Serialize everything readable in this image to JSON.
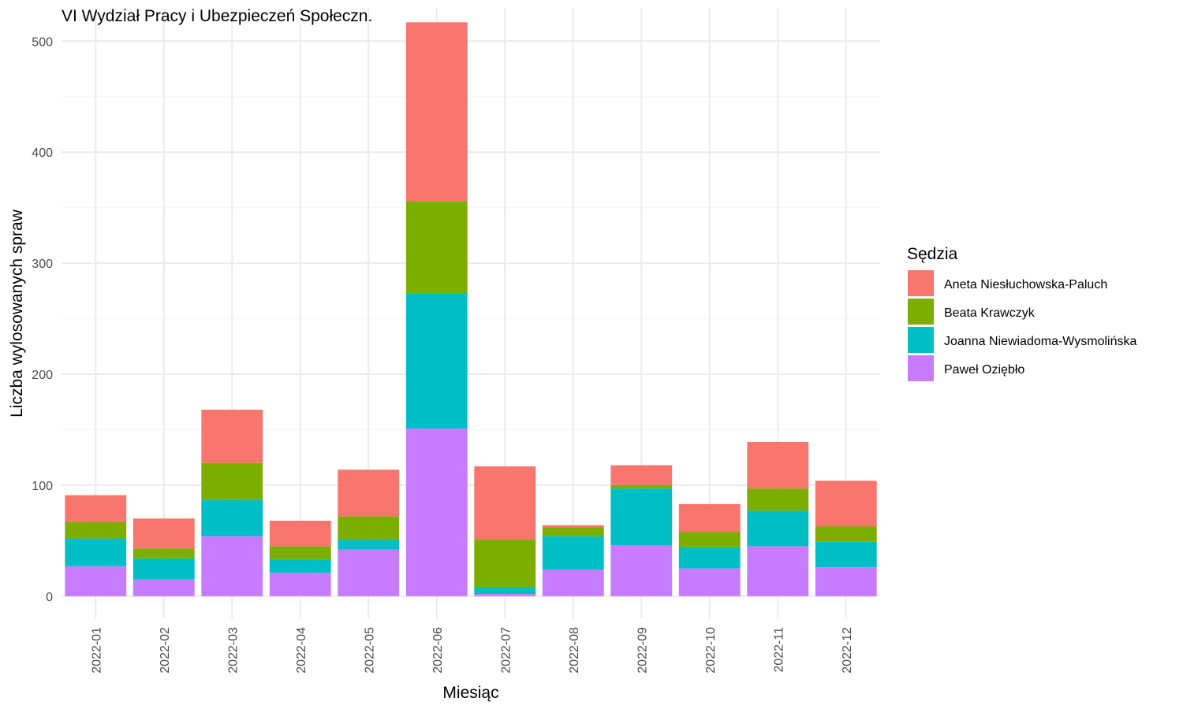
{
  "chart_data": {
    "type": "bar",
    "stacked": true,
    "title": "VI Wydział Pracy i Ubezpieczeń Społeczn.",
    "xlabel": "Miesiąc",
    "ylabel": "Liczba wylosowanych spraw",
    "ylim": [
      -20,
      530
    ],
    "yticks": [
      0,
      100,
      200,
      300,
      400,
      500
    ],
    "grid": true,
    "legend": {
      "title": "Sędzia",
      "placement": "right"
    },
    "categories": [
      "2022-01",
      "2022-02",
      "2022-03",
      "2022-04",
      "2022-05",
      "2022-06",
      "2022-07",
      "2022-08",
      "2022-09",
      "2022-10",
      "2022-11",
      "2022-12"
    ],
    "series": [
      {
        "name": "Paweł Oziębło",
        "color": "#C77CFF",
        "values": [
          27,
          15,
          54,
          21,
          42,
          151,
          2,
          24,
          46,
          25,
          45,
          26
        ]
      },
      {
        "name": "Joanna Niewiadoma-Wysmolińska",
        "color": "#00BFC4",
        "values": [
          25,
          19,
          33,
          12,
          9,
          122,
          6,
          30,
          51,
          19,
          32,
          23
        ]
      },
      {
        "name": "Beata Krawczyk",
        "color": "#7CAE00",
        "values": [
          15,
          9,
          33,
          12,
          21,
          83,
          43,
          8,
          3,
          14,
          20,
          14
        ]
      },
      {
        "name": "Aneta Niesłuchowska-Paluch",
        "color": "#F8766D",
        "values": [
          24,
          27,
          48,
          23,
          42,
          161,
          66,
          2,
          18,
          25,
          42,
          41
        ]
      }
    ],
    "legend_order": [
      "Aneta Niesłuchowska-Paluch",
      "Beata Krawczyk",
      "Joanna Niewiadoma-Wysmolińska",
      "Paweł Oziębło"
    ]
  }
}
